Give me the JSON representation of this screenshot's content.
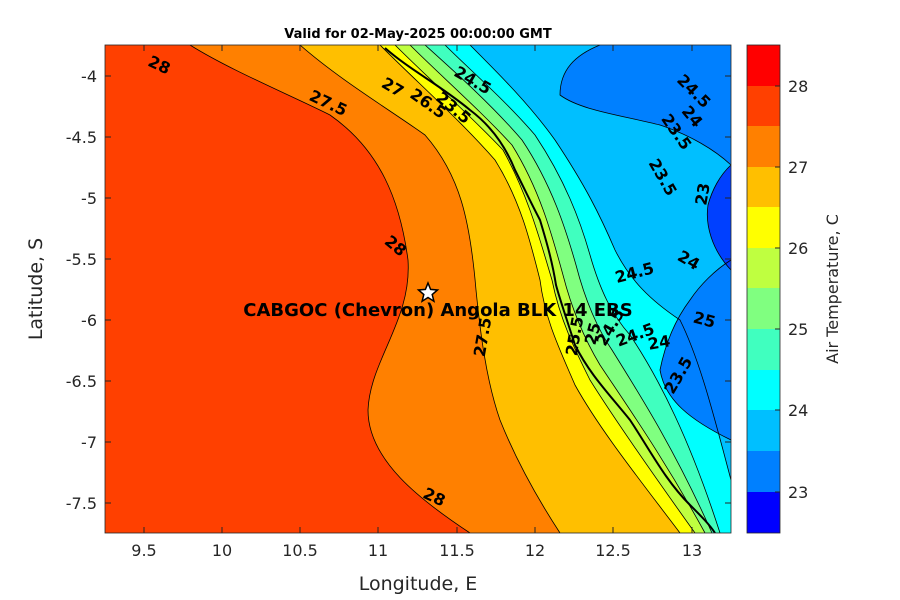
{
  "title": "Valid for 02-May-2025 00:00:00 GMT",
  "xlabel": "Longitude, E",
  "ylabel": "Latitude, S",
  "colorbar_label": "Air Temperature, C",
  "site_label": "CABGOC (Chevron)  Angola BLK 14  EBS",
  "x_ticks": [
    "9.5",
    "10",
    "10.5",
    "11",
    "11.5",
    "12",
    "12.5",
    "13"
  ],
  "y_ticks": [
    "-4",
    "-4.5",
    "-5",
    "-5.5",
    "-6",
    "-6.5",
    "-7",
    "-7.5"
  ],
  "colorbar_ticks": [
    "28",
    "27",
    "26",
    "25",
    "24",
    "23"
  ],
  "contour_labels": [
    "28",
    "27.5",
    "27",
    "26.5",
    "24.5",
    "23.5",
    "24.5",
    "24",
    "23.5",
    "23.5",
    "23",
    "28",
    "24.5",
    "24",
    "25",
    "27.5",
    "24.5",
    "24",
    "23.5",
    "28",
    "25.5",
    "25",
    "24.5"
  ],
  "colors": {
    "t28_5": "#ff0000",
    "t28": "#ff4000",
    "t27_5": "#ff8000",
    "t27": "#ffbf00",
    "t26_5": "#ffff00",
    "t26": "#bfff40",
    "t25_5": "#80ff80",
    "t25": "#40ffbf",
    "t24_5": "#00ffff",
    "t24": "#00bfff",
    "t23_5": "#0080ff",
    "t23": "#0040ff",
    "t22_5": "#0000ff"
  },
  "map_data": {
    "x_range": [
      9.25,
      13.25
    ],
    "y_range": [
      -7.75,
      -3.75
    ],
    "site": {
      "lon": 11.33,
      "lat": -5.8
    }
  }
}
